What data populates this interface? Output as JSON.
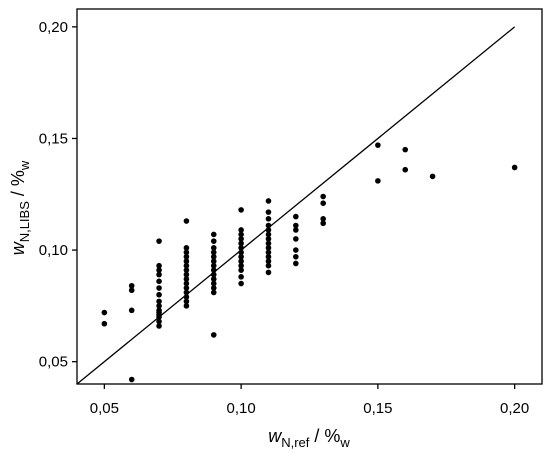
{
  "chart_data": {
    "type": "scatter",
    "xlabel": {
      "var": "w",
      "sub": "N,ref",
      "sep": " / %",
      "unit_sub": "w"
    },
    "ylabel": {
      "var": "w",
      "sub": "N,LIBS",
      "sep": " / %",
      "unit_sub": "w"
    },
    "xlim": [
      0.04,
      0.21
    ],
    "ylim": [
      0.04,
      0.208
    ],
    "x_ticks": [
      0.05,
      0.1,
      0.15,
      0.2
    ],
    "x_tick_labels": [
      "0,05",
      "0,10",
      "0,15",
      "0,20"
    ],
    "y_ticks": [
      0.05,
      0.1,
      0.15,
      0.2
    ],
    "y_tick_labels": [
      "0,05",
      "0,10",
      "0,15",
      "0,20"
    ],
    "reference_line": {
      "x": [
        0.04,
        0.2
      ],
      "y": [
        0.04,
        0.2
      ]
    },
    "grid": false,
    "marker_color": "#000000",
    "series": [
      {
        "points": [
          [
            0.05,
            0.072
          ],
          [
            0.05,
            0.067
          ],
          [
            0.06,
            0.084
          ],
          [
            0.06,
            0.082
          ],
          [
            0.06,
            0.073
          ],
          [
            0.06,
            0.042
          ],
          [
            0.07,
            0.104
          ],
          [
            0.07,
            0.093
          ],
          [
            0.07,
            0.091
          ],
          [
            0.07,
            0.089
          ],
          [
            0.07,
            0.086
          ],
          [
            0.07,
            0.083
          ],
          [
            0.07,
            0.08
          ],
          [
            0.07,
            0.077
          ],
          [
            0.07,
            0.075
          ],
          [
            0.07,
            0.073
          ],
          [
            0.07,
            0.072
          ],
          [
            0.07,
            0.071
          ],
          [
            0.07,
            0.07
          ],
          [
            0.07,
            0.068
          ],
          [
            0.07,
            0.066
          ],
          [
            0.08,
            0.113
          ],
          [
            0.08,
            0.101
          ],
          [
            0.08,
            0.099
          ],
          [
            0.08,
            0.097
          ],
          [
            0.08,
            0.095
          ],
          [
            0.08,
            0.093
          ],
          [
            0.08,
            0.091
          ],
          [
            0.08,
            0.089
          ],
          [
            0.08,
            0.087
          ],
          [
            0.08,
            0.085
          ],
          [
            0.08,
            0.083
          ],
          [
            0.08,
            0.081
          ],
          [
            0.08,
            0.079
          ],
          [
            0.08,
            0.077
          ],
          [
            0.08,
            0.075
          ],
          [
            0.09,
            0.107
          ],
          [
            0.09,
            0.104
          ],
          [
            0.09,
            0.101
          ],
          [
            0.09,
            0.099
          ],
          [
            0.09,
            0.097
          ],
          [
            0.09,
            0.095
          ],
          [
            0.09,
            0.093
          ],
          [
            0.09,
            0.091
          ],
          [
            0.09,
            0.089
          ],
          [
            0.09,
            0.087
          ],
          [
            0.09,
            0.085
          ],
          [
            0.09,
            0.083
          ],
          [
            0.09,
            0.081
          ],
          [
            0.09,
            0.062
          ],
          [
            0.1,
            0.118
          ],
          [
            0.1,
            0.109
          ],
          [
            0.1,
            0.107
          ],
          [
            0.1,
            0.105
          ],
          [
            0.1,
            0.103
          ],
          [
            0.1,
            0.101
          ],
          [
            0.1,
            0.099
          ],
          [
            0.1,
            0.097
          ],
          [
            0.1,
            0.095
          ],
          [
            0.1,
            0.093
          ],
          [
            0.1,
            0.091
          ],
          [
            0.1,
            0.088
          ],
          [
            0.1,
            0.085
          ],
          [
            0.11,
            0.122
          ],
          [
            0.11,
            0.117
          ],
          [
            0.11,
            0.114
          ],
          [
            0.11,
            0.111
          ],
          [
            0.11,
            0.109
          ],
          [
            0.11,
            0.107
          ],
          [
            0.11,
            0.105
          ],
          [
            0.11,
            0.103
          ],
          [
            0.11,
            0.101
          ],
          [
            0.11,
            0.099
          ],
          [
            0.11,
            0.097
          ],
          [
            0.11,
            0.095
          ],
          [
            0.11,
            0.093
          ],
          [
            0.11,
            0.09
          ],
          [
            0.12,
            0.115
          ],
          [
            0.12,
            0.111
          ],
          [
            0.12,
            0.109
          ],
          [
            0.12,
            0.105
          ],
          [
            0.12,
            0.1
          ],
          [
            0.12,
            0.097
          ],
          [
            0.12,
            0.094
          ],
          [
            0.13,
            0.124
          ],
          [
            0.13,
            0.121
          ],
          [
            0.13,
            0.114
          ],
          [
            0.13,
            0.112
          ],
          [
            0.15,
            0.147
          ],
          [
            0.15,
            0.131
          ],
          [
            0.16,
            0.145
          ],
          [
            0.16,
            0.136
          ],
          [
            0.17,
            0.133
          ],
          [
            0.2,
            0.137
          ]
        ]
      }
    ]
  }
}
